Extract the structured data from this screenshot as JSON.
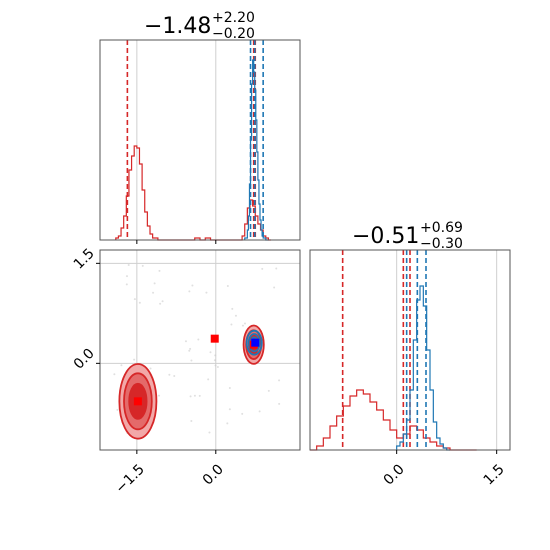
{
  "chart_data": [
    {
      "type": "histogram",
      "panel": "param1-marginal",
      "title": {
        "main": "−1.48",
        "sup": "+2.20",
        "sub": "−0.20"
      },
      "xlim": [
        -2.2,
        1.6
      ],
      "ylim": [
        0,
        1.0
      ],
      "grid": true,
      "series": [
        {
          "color": "#d62728",
          "bins": [
            -1.9,
            -1.85,
            -1.8,
            -1.75,
            -1.7,
            -1.65,
            -1.6,
            -1.55,
            -1.5,
            -1.45,
            -1.4,
            -1.35,
            -1.3,
            -1.25,
            -1.2,
            -1.1,
            -0.4,
            -0.3,
            -0.2,
            -0.1,
            0.0,
            0.5,
            0.55,
            0.6,
            0.65,
            0.7,
            0.75,
            0.8,
            0.85,
            0.9,
            0.95,
            1.0
          ],
          "heights": [
            0.01,
            0.02,
            0.06,
            0.12,
            0.22,
            0.35,
            0.42,
            0.47,
            0.46,
            0.38,
            0.25,
            0.14,
            0.07,
            0.03,
            0.01,
            0.0,
            0.01,
            0.0,
            0.01,
            0.0,
            0.0,
            0.02,
            0.08,
            0.16,
            0.2,
            0.17,
            0.12,
            0.08,
            0.05,
            0.02,
            0.01,
            0.0
          ],
          "quantiles": [
            -1.68,
            0.72,
            0.75
          ]
        },
        {
          "color": "#1f77b4",
          "bins": [
            0.55,
            0.6,
            0.62,
            0.64,
            0.66,
            0.68,
            0.7,
            0.72,
            0.74,
            0.76,
            0.78,
            0.8,
            0.82,
            0.84,
            0.86,
            0.88,
            0.9,
            0.95
          ],
          "heights": [
            0.01,
            0.05,
            0.12,
            0.28,
            0.5,
            0.78,
            0.9,
            0.84,
            0.75,
            0.6,
            0.44,
            0.3,
            0.18,
            0.1,
            0.05,
            0.02,
            0.01,
            0.0
          ],
          "quantiles": [
            0.66,
            0.74,
            0.9
          ]
        }
      ],
      "x_ticks": [
        -1.5,
        0.0
      ]
    },
    {
      "type": "histogram",
      "panel": "param2-marginal",
      "title": {
        "main": "−0.51",
        "sup": "+0.69",
        "sub": "−0.30"
      },
      "xlim": [
        -1.3,
        1.7
      ],
      "ylim": [
        0,
        1.0
      ],
      "grid": true,
      "series": [
        {
          "color": "#d62728",
          "bins": [
            -1.3,
            -1.2,
            -1.1,
            -1.0,
            -0.9,
            -0.8,
            -0.7,
            -0.6,
            -0.5,
            -0.4,
            -0.3,
            -0.2,
            -0.1,
            0.0,
            0.1,
            0.2,
            0.3,
            0.4,
            0.5,
            0.6,
            0.7,
            0.8,
            0.9,
            1.0,
            1.1
          ],
          "heights": [
            0.0,
            0.02,
            0.06,
            0.12,
            0.17,
            0.22,
            0.27,
            0.3,
            0.28,
            0.24,
            0.2,
            0.15,
            0.1,
            0.06,
            0.08,
            0.12,
            0.1,
            0.06,
            0.04,
            0.02,
            0.01,
            0.0,
            0.0,
            0.0,
            0.0
          ],
          "quantiles": [
            -0.81,
            0.1,
            0.2
          ]
        },
        {
          "color": "#1f77b4",
          "bins": [
            0.0,
            0.05,
            0.1,
            0.15,
            0.2,
            0.25,
            0.3,
            0.35,
            0.4,
            0.45,
            0.5,
            0.55,
            0.6,
            0.65,
            0.7,
            0.75
          ],
          "heights": [
            0.02,
            0.04,
            0.08,
            0.15,
            0.3,
            0.55,
            0.75,
            0.82,
            0.72,
            0.5,
            0.3,
            0.14,
            0.06,
            0.03,
            0.01,
            0.0
          ],
          "quantiles": [
            0.15,
            0.31,
            0.44
          ]
        }
      ],
      "x_ticks": [
        0.0,
        1.5
      ],
      "x_tick_labels": [
        "0.0",
        "1.5"
      ]
    },
    {
      "type": "scatter",
      "panel": "joint",
      "xlim": [
        -2.2,
        1.6
      ],
      "ylim": [
        -1.3,
        1.7
      ],
      "grid": true,
      "x_ticks": [
        -1.5,
        0.0
      ],
      "x_tick_labels": [
        "−1.5",
        "0.0"
      ],
      "y_ticks": [
        0.0,
        1.5
      ],
      "y_tick_labels": [
        "0.0",
        "1.5"
      ],
      "red_cluster_1": {
        "center": [
          -1.48,
          -0.57
        ],
        "sigma": [
          0.22,
          0.35
        ]
      },
      "red_cluster_2": {
        "center": [
          0.72,
          0.28
        ],
        "sigma": [
          0.12,
          0.18
        ]
      },
      "blue_cluster": {
        "center": [
          0.73,
          0.31
        ],
        "sigma": [
          0.08,
          0.1
        ]
      },
      "red_markers": [
        [
          -1.48,
          -0.57
        ],
        [
          -0.02,
          0.37
        ],
        [
          0.72,
          0.28
        ]
      ],
      "blue_markers": [
        [
          0.75,
          0.31
        ]
      ],
      "colors": {
        "red": "#d62728",
        "blue": "#1f77b4",
        "marker_blue": "#0000ff",
        "marker_red": "#ff0000"
      }
    }
  ]
}
